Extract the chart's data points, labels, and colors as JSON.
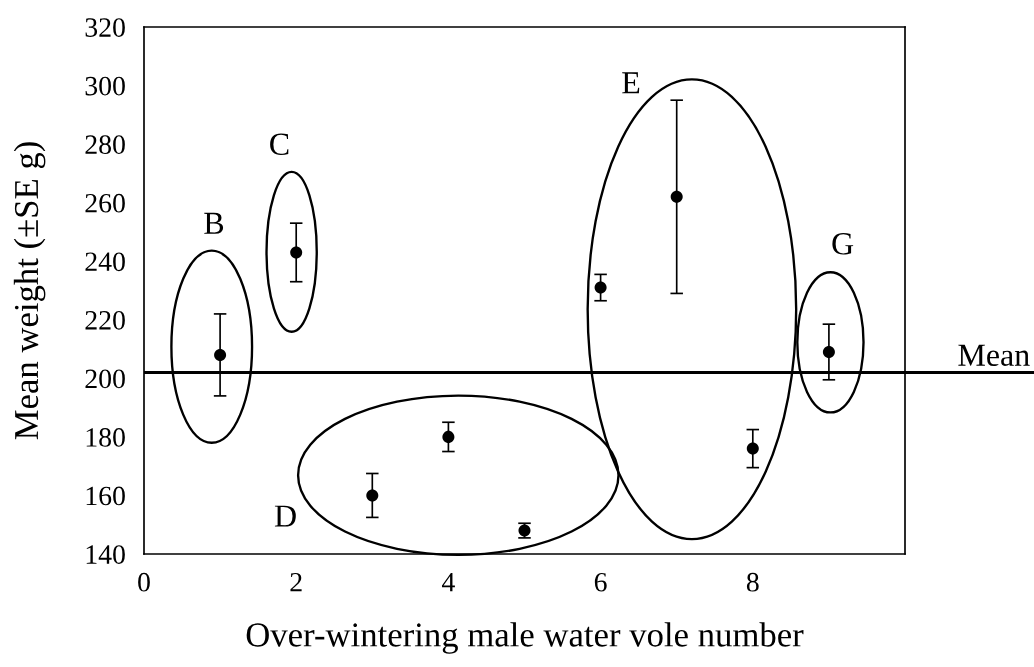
{
  "chart_data": {
    "type": "scatter",
    "xlabel": "Over-wintering male water vole number",
    "ylabel": "Mean weight (±SE g)",
    "x": [
      1,
      2,
      3,
      4,
      5,
      6,
      7,
      8,
      9
    ],
    "values": [
      208,
      243,
      160,
      180,
      148,
      231,
      262,
      176,
      209
    ],
    "errors": [
      14,
      10,
      7.5,
      5,
      2.5,
      4.5,
      33,
      6.5,
      9.5
    ],
    "color": "#000000",
    "marker": "circle",
    "xlim": [
      0,
      10
    ],
    "xticks": [
      0,
      2,
      4,
      6,
      8,
      {
        "value": 10,
        "label": null
      }
    ],
    "ylim": [
      140,
      320
    ],
    "yticks": [
      140,
      160,
      180,
      200,
      220,
      240,
      260,
      280,
      300,
      320
    ],
    "grid": false,
    "ref_lines": [
      {
        "axis": "y",
        "value": 202,
        "label": "Mean",
        "color": "#000000",
        "line_style": "solid"
      }
    ],
    "annotations": [
      "B",
      "C",
      "D",
      "E",
      "G"
    ]
  }
}
